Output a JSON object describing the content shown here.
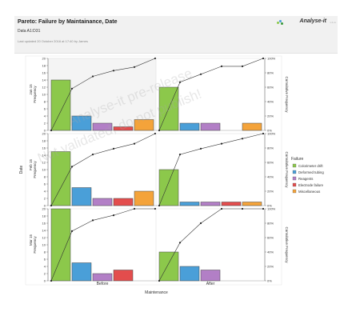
{
  "header": {
    "title": "Pareto: Failure by Maintainance, Date",
    "subtitle": "Data A1:D31",
    "updated": "Last updated 20 October 2016 at 17:40 by James",
    "brand": "Analyse-it",
    "brand_version": "v.4.xx"
  },
  "watermark": {
    "line1": "Analyse-it pre-release",
    "line2": "Not validated, do not publish!"
  },
  "colors": {
    "Colorimeter drift": "#8cc84b",
    "Deformed tubing": "#4a9fd8",
    "Reagents": "#b27fc6",
    "Electrode failure": "#e34d4d",
    "Miscellaneous": "#f4a33a"
  },
  "chart_data": {
    "type": "bar",
    "subtype": "pareto-panel-grid",
    "facet_x_label": "Maintenance",
    "facet_y_label": "Date",
    "facet_x_levels": [
      "Before",
      "After"
    ],
    "facet_y_levels": [
      "Jan 15",
      "Feb 15",
      "Mar 15"
    ],
    "panel_y_label": "Frequency",
    "right_axis_label": "Cumulative Frequency",
    "left_ylim": [
      0,
      20
    ],
    "left_ticks": [
      0,
      2,
      4,
      6,
      8,
      10,
      12,
      14,
      16,
      18,
      20
    ],
    "right_ticks": [
      "0%",
      "20%",
      "40%",
      "60%",
      "80%",
      "100%"
    ],
    "legend": {
      "title": "Failure",
      "position": "right",
      "entries": [
        "Colorimeter drift",
        "Deformed tubing",
        "Reagents",
        "Electrode failure",
        "Miscellaneous"
      ]
    },
    "categories": [
      "Colorimeter drift",
      "Deformed tubing",
      "Reagents",
      "Electrode failure",
      "Miscellaneous"
    ],
    "panels": [
      {
        "row": "Jan 15",
        "col": "Before",
        "values": [
          14,
          4,
          2,
          1,
          3
        ],
        "cumulative": [
          0,
          58,
          75,
          83,
          88,
          100
        ]
      },
      {
        "row": "Jan 15",
        "col": "After",
        "values": [
          12,
          2,
          2,
          0,
          2
        ],
        "cumulative": [
          0,
          67,
          78,
          89,
          89,
          100
        ]
      },
      {
        "row": "Feb 15",
        "col": "Before",
        "values": [
          15,
          5,
          2,
          2,
          4
        ],
        "cumulative": [
          0,
          54,
          71,
          79,
          86,
          100
        ]
      },
      {
        "row": "Feb 15",
        "col": "After",
        "values": [
          10,
          1,
          1,
          1,
          1
        ],
        "cumulative": [
          0,
          71,
          79,
          86,
          93,
          100
        ]
      },
      {
        "row": "Mar 15",
        "col": "Before",
        "values": [
          22,
          5,
          2,
          3,
          0
        ],
        "cumulative": [
          0,
          69,
          84,
          91,
          100,
          100
        ]
      },
      {
        "row": "Mar 15",
        "col": "After",
        "values": [
          8,
          4,
          3,
          0,
          0
        ],
        "cumulative": [
          0,
          53,
          80,
          100,
          100,
          100
        ]
      }
    ]
  }
}
